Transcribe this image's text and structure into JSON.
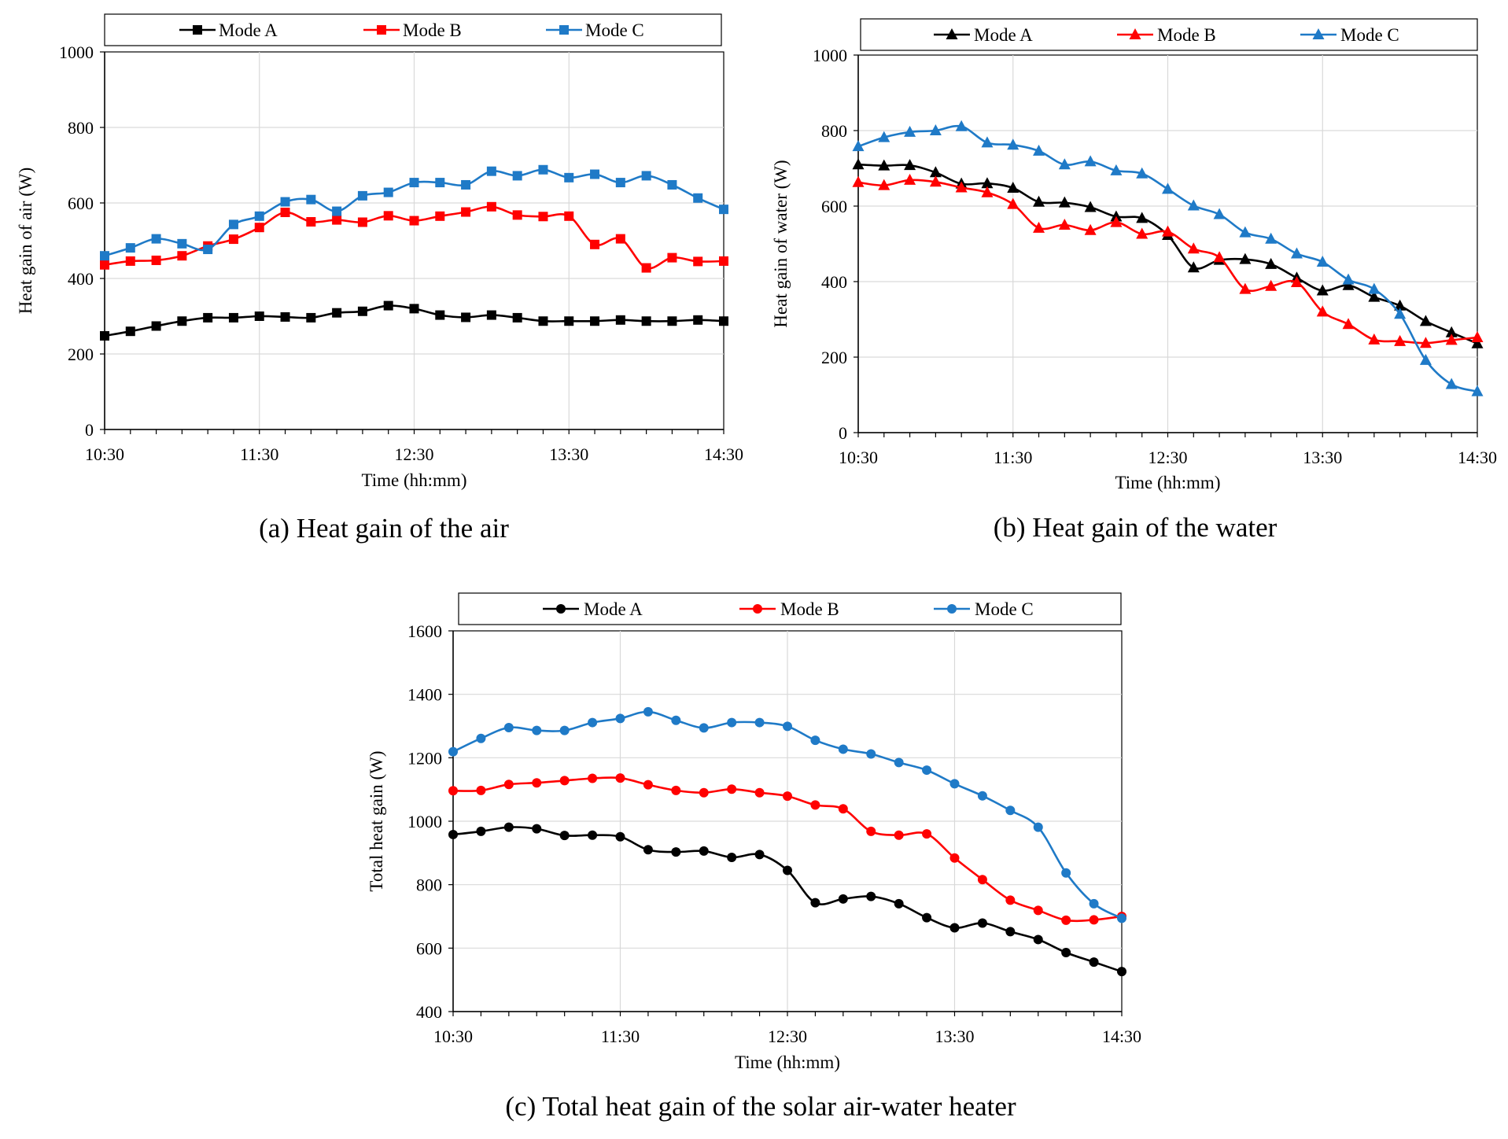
{
  "chart_data": [
    {
      "type": "line",
      "marker": "square",
      "caption": "(a) Heat gain of the air",
      "xlabel": "Time (hh:mm)",
      "ylabel": "Heat gain of air (W)",
      "ylim": [
        0,
        1000
      ],
      "yticks": [
        "0",
        "200",
        "400",
        "600",
        "800",
        "1000"
      ],
      "xticks": [
        "10:30",
        "11:30",
        "12:30",
        "13:30",
        "14:30"
      ],
      "legend_position": "top",
      "series": [
        {
          "name": "Mode A",
          "color": "#000000",
          "values": [
            248,
            260,
            274,
            287,
            296,
            296,
            300,
            298,
            296,
            309,
            313,
            328,
            320,
            303,
            297,
            303,
            296,
            287,
            287,
            287,
            290,
            287,
            287,
            290,
            287
          ]
        },
        {
          "name": "Mode B",
          "color": "#ff0000",
          "values": [
            436,
            446,
            448,
            460,
            486,
            504,
            535,
            575,
            550,
            555,
            549,
            566,
            553,
            565,
            576,
            590,
            568,
            564,
            565,
            490,
            505,
            428,
            455,
            445,
            446
          ]
        },
        {
          "name": "Mode C",
          "color": "#1f7ac7",
          "values": [
            460,
            481,
            505,
            492,
            477,
            543,
            565,
            603,
            609,
            578,
            619,
            628,
            654,
            654,
            648,
            684,
            672,
            688,
            667,
            676,
            654,
            672,
            648,
            613,
            583
          ]
        }
      ]
    },
    {
      "type": "line",
      "marker": "triangle",
      "caption": "(b) Heat gain of the water",
      "xlabel": "Time (hh:mm)",
      "ylabel": "Heat gain of water (W)",
      "ylim": [
        0,
        1000
      ],
      "yticks": [
        "0",
        "200",
        "400",
        "600",
        "800",
        "1000"
      ],
      "xticks": [
        "10:30",
        "11:30",
        "12:30",
        "13:30",
        "14:30"
      ],
      "legend_position": "top",
      "series": [
        {
          "name": "Mode A",
          "color": "#000000",
          "values": [
            710,
            707,
            708,
            689,
            659,
            660,
            648,
            611,
            609,
            597,
            572,
            568,
            523,
            437,
            457,
            459,
            446,
            410,
            376,
            390,
            359,
            336,
            295,
            265,
            236
          ]
        },
        {
          "name": "Mode B",
          "color": "#ff0000",
          "values": [
            663,
            655,
            669,
            664,
            649,
            636,
            605,
            542,
            550,
            536,
            557,
            526,
            532,
            487,
            464,
            380,
            388,
            398,
            320,
            287,
            246,
            242,
            237,
            245,
            252
          ]
        },
        {
          "name": "Mode C",
          "color": "#1f7ac7",
          "values": [
            758,
            782,
            796,
            800,
            811,
            768,
            762,
            746,
            710,
            718,
            694,
            686,
            645,
            601,
            578,
            530,
            513,
            474,
            452,
            405,
            380,
            314,
            192,
            128,
            109
          ]
        }
      ]
    },
    {
      "type": "line",
      "marker": "circle",
      "caption": "(c) Total heat gain of the solar air-water heater",
      "xlabel": "Time (hh:mm)",
      "ylabel": "Total heat gain (W)",
      "ylim": [
        400,
        1600
      ],
      "yticks": [
        "400",
        "600",
        "800",
        "1000",
        "1200",
        "1400",
        "1600"
      ],
      "xticks": [
        "10:30",
        "11:30",
        "12:30",
        "13:30",
        "14:30"
      ],
      "legend_position": "top",
      "series": [
        {
          "name": "Mode A",
          "color": "#000000",
          "values": [
            958,
            968,
            981,
            976,
            955,
            956,
            951,
            910,
            903,
            906,
            886,
            895,
            845,
            743,
            755,
            763,
            740,
            696,
            664,
            679,
            652,
            627,
            586,
            556,
            526
          ]
        },
        {
          "name": "Mode B",
          "color": "#ff0000",
          "values": [
            1096,
            1097,
            1116,
            1121,
            1128,
            1135,
            1136,
            1115,
            1097,
            1090,
            1101,
            1090,
            1079,
            1051,
            1039,
            968,
            956,
            960,
            884,
            816,
            751,
            719,
            688,
            689,
            700
          ]
        },
        {
          "name": "Mode C",
          "color": "#1f7ac7",
          "values": [
            1219,
            1261,
            1295,
            1286,
            1286,
            1311,
            1324,
            1345,
            1318,
            1294,
            1311,
            1311,
            1299,
            1255,
            1227,
            1212,
            1185,
            1161,
            1118,
            1080,
            1034,
            981,
            837,
            740,
            694
          ]
        }
      ]
    }
  ]
}
